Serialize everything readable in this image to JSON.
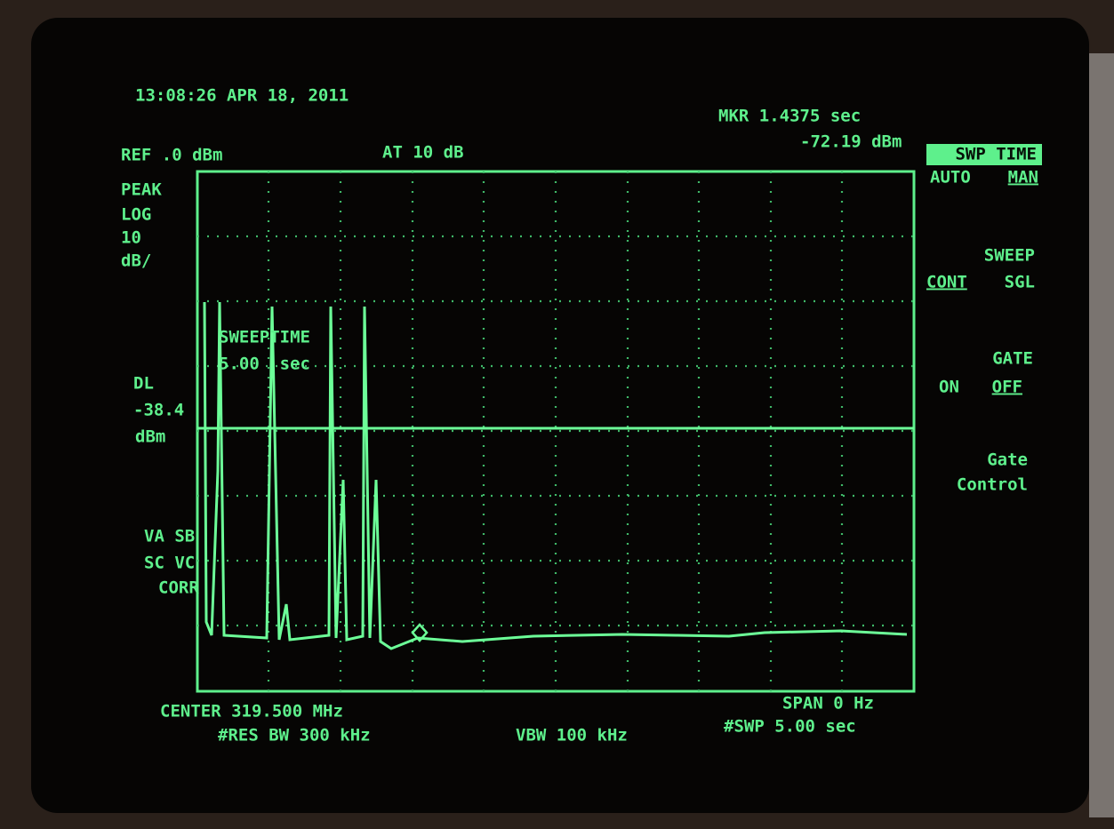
{
  "header": {
    "timestamp": "13:08:26 APR 18, 2011",
    "reference": "REF .0 dBm",
    "attenuation": "AT 10 dB",
    "marker": "MKR 1.4375 sec",
    "marker_level": "-72.19 dBm"
  },
  "left_panel": {
    "detector": "PEAK",
    "scale": "LOG",
    "scale_value": "10",
    "scale_unit": "dB/",
    "display_line": "DL",
    "display_line_value": "-38.4",
    "display_line_unit": "dBm",
    "flags": [
      "VA SB",
      "SC VC",
      "CORR"
    ]
  },
  "overlay": {
    "label": "SWEEPTIME",
    "value": "5.00  sec"
  },
  "footer": {
    "center": "CENTER 319.500 MHz",
    "res_bw": "#RES BW 300 kHz",
    "vbw": "VBW 100 kHz",
    "span": "SPAN 0 Hz",
    "sweep": "#SWP 5.00 sec"
  },
  "softkeys": [
    {
      "title": "SWP TIME",
      "options": [
        "AUTO",
        "MAN"
      ]
    },
    {
      "title": "SWEEP",
      "options": [
        "CONT",
        "SGL"
      ]
    },
    {
      "title": "GATE",
      "options": [
        "ON",
        "OFF"
      ]
    },
    {
      "title": "Gate",
      "options": [
        "Control"
      ]
    }
  ]
}
